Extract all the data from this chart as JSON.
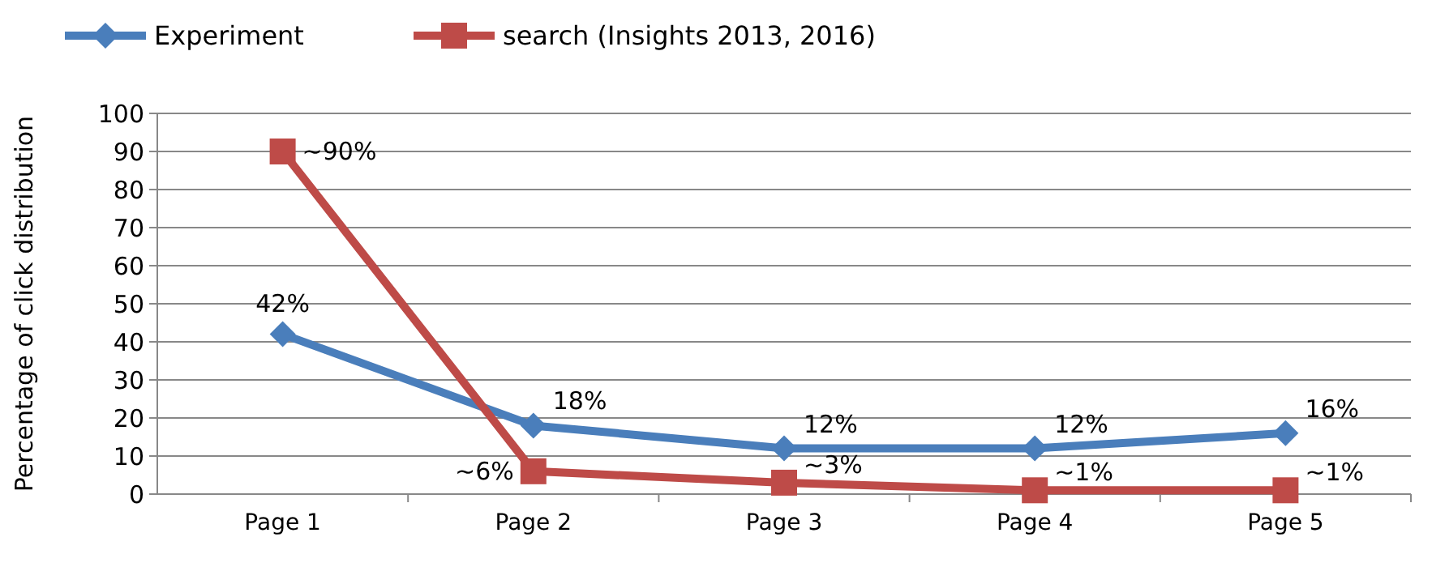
{
  "chart_data": {
    "type": "line",
    "categories": [
      "Page 1",
      "Page 2",
      "Page 3",
      "Page 4",
      "Page 5"
    ],
    "ylabel": "Percentage of click distribution",
    "ylim": [
      0,
      100
    ],
    "yticks": [
      0,
      10,
      20,
      30,
      40,
      50,
      60,
      70,
      80,
      90,
      100
    ],
    "grid": "y",
    "legend": "top",
    "series": [
      {
        "name": "Experiment",
        "color": "#4a7ebb",
        "marker": "diamond",
        "values": [
          42,
          18,
          12,
          12,
          16
        ],
        "value_labels": [
          "42%",
          "18%",
          "12%",
          "12%",
          "16%"
        ]
      },
      {
        "name": "search (Insights 2013, 2016)",
        "color": "#be4b48",
        "marker": "square",
        "values": [
          90,
          6,
          3,
          1,
          1
        ],
        "value_labels": [
          "~90%",
          "~6%",
          "~3%",
          "~1%",
          "~1%"
        ]
      }
    ]
  }
}
